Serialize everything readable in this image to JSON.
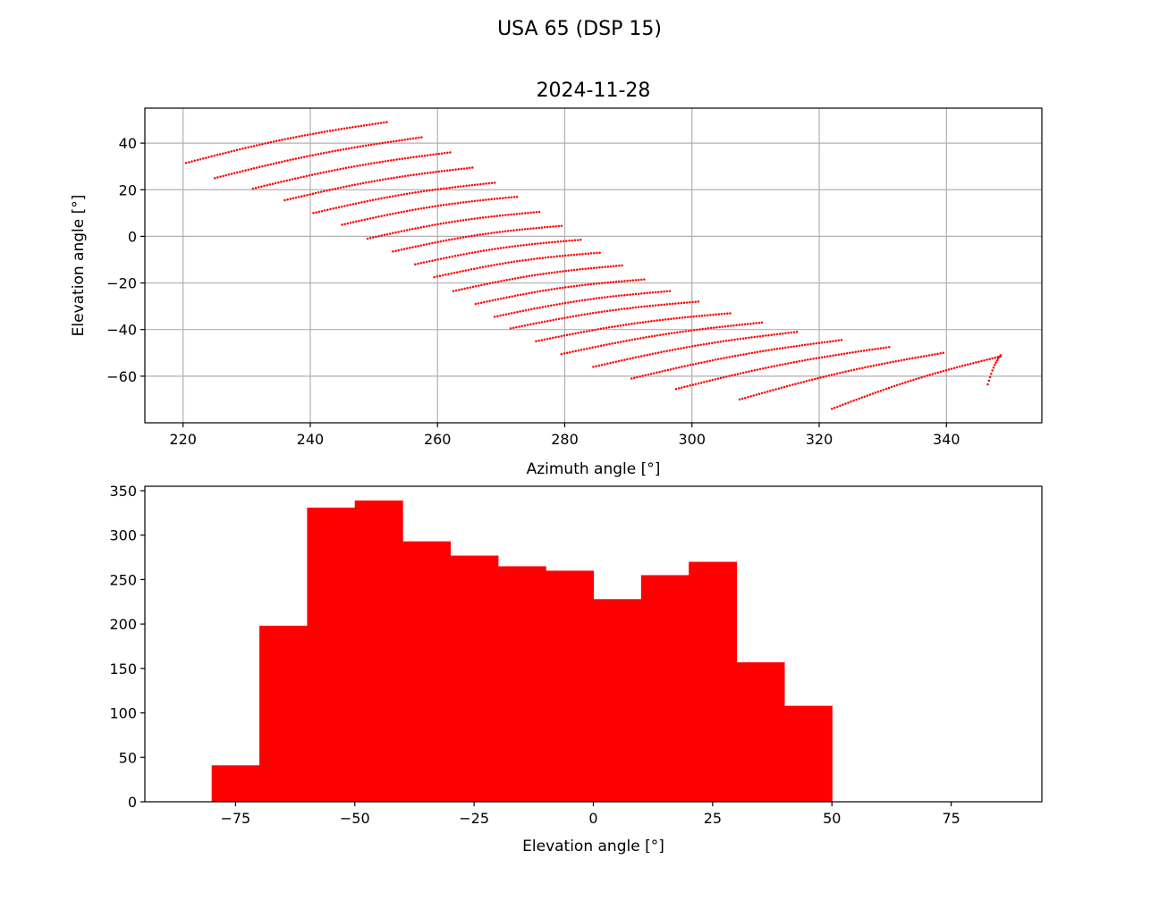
{
  "figure": {
    "suptitle": "USA 65 (DSP 15)"
  },
  "chart_data": [
    {
      "type": "scatter",
      "title": "2024-11-28",
      "xlabel": "Azimuth angle [°]",
      "ylabel": "Elevation angle [°]",
      "xlim": [
        214,
        355
      ],
      "ylim": [
        -80,
        55
      ],
      "xticks": [
        220,
        240,
        260,
        280,
        300,
        320,
        340
      ],
      "yticks": [
        -60,
        -40,
        -20,
        0,
        20,
        40
      ],
      "grid": true,
      "color": "#ff0000",
      "marker": "dot",
      "tracks": [
        {
          "start": [
            220.5,
            31.5
          ],
          "end": [
            252.0,
            49.0
          ]
        },
        {
          "start": [
            225.0,
            25.0
          ],
          "end": [
            257.5,
            42.5
          ]
        },
        {
          "start": [
            231.0,
            20.5
          ],
          "end": [
            262.0,
            36.0
          ]
        },
        {
          "start": [
            236.0,
            15.5
          ],
          "end": [
            265.5,
            29.5
          ]
        },
        {
          "start": [
            240.5,
            10.0
          ],
          "end": [
            269.0,
            23.0
          ]
        },
        {
          "start": [
            245.0,
            5.0
          ],
          "end": [
            272.5,
            17.0
          ]
        },
        {
          "start": [
            249.0,
            -1.0
          ],
          "end": [
            276.0,
            10.5
          ]
        },
        {
          "start": [
            253.0,
            -6.5
          ],
          "end": [
            279.5,
            4.5
          ]
        },
        {
          "start": [
            256.5,
            -12.0
          ],
          "end": [
            282.5,
            -1.5
          ]
        },
        {
          "start": [
            259.5,
            -17.5
          ],
          "end": [
            285.5,
            -7.0
          ]
        },
        {
          "start": [
            262.5,
            -23.5
          ],
          "end": [
            289.0,
            -12.5
          ]
        },
        {
          "start": [
            266.0,
            -29.0
          ],
          "end": [
            292.5,
            -18.5
          ]
        },
        {
          "start": [
            269.0,
            -34.5
          ],
          "end": [
            296.5,
            -23.5
          ]
        },
        {
          "start": [
            271.5,
            -39.5
          ],
          "end": [
            301.0,
            -28.0
          ]
        },
        {
          "start": [
            275.5,
            -45.0
          ],
          "end": [
            306.0,
            -33.0
          ]
        },
        {
          "start": [
            279.5,
            -50.5
          ],
          "end": [
            311.0,
            -37.0
          ]
        },
        {
          "start": [
            284.5,
            -56.0
          ],
          "end": [
            316.5,
            -41.0
          ]
        },
        {
          "start": [
            290.5,
            -61.0
          ],
          "end": [
            323.5,
            -44.5
          ]
        },
        {
          "start": [
            297.5,
            -65.5
          ],
          "end": [
            331.0,
            -47.5
          ]
        },
        {
          "start": [
            307.5,
            -70.0
          ],
          "end": [
            339.5,
            -50.0
          ]
        },
        {
          "start": [
            322.0,
            -74.0
          ],
          "end": [
            348.5,
            -51.5
          ]
        },
        {
          "start": [
            346.5,
            -63.5
          ],
          "end": [
            348.5,
            -51.0
          ]
        }
      ]
    },
    {
      "type": "bar",
      "xlabel": "Elevation angle [°]",
      "ylabel": "",
      "xlim": [
        -94,
        94
      ],
      "ylim": [
        0,
        355
      ],
      "xticks": [
        "−75",
        "−50",
        "−25",
        "0",
        "25",
        "50",
        "75"
      ],
      "yticks": [
        "0",
        "50",
        "100",
        "150",
        "200",
        "250",
        "300",
        "350"
      ],
      "grid": false,
      "color": "#ff0000",
      "bin_edges": [
        -80,
        -70,
        -60,
        -50,
        -40,
        -30,
        -20,
        -10,
        0,
        10,
        20,
        30,
        40,
        50
      ],
      "values": [
        41,
        198,
        331,
        339,
        293,
        277,
        265,
        260,
        228,
        255,
        270,
        157,
        108
      ]
    }
  ]
}
